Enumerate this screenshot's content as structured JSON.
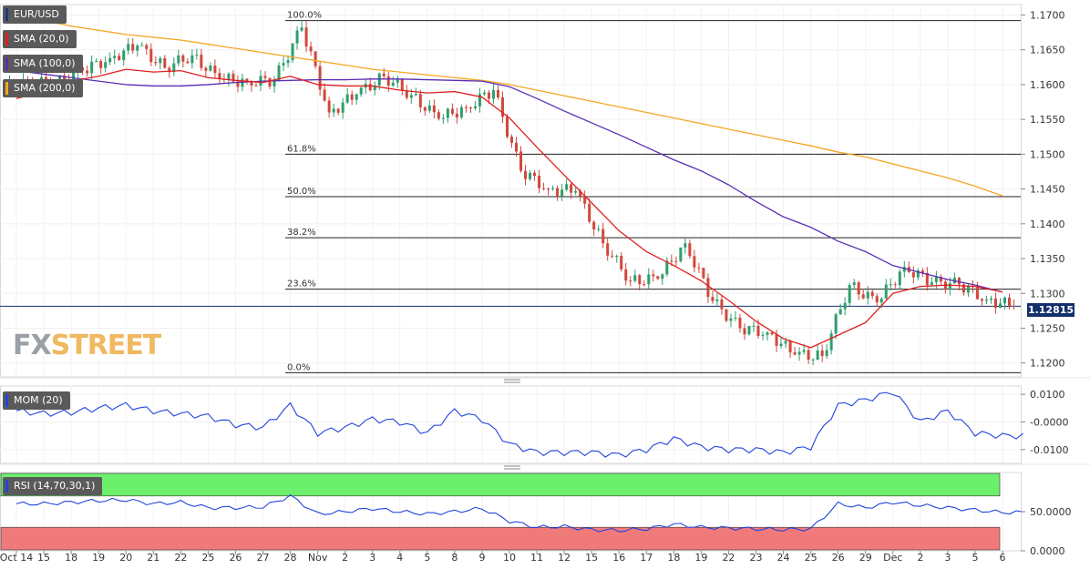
{
  "instrument": "EUR/USD",
  "indicators": {
    "sma20": {
      "label": "SMA (20,0)",
      "color": "#e02020"
    },
    "sma100": {
      "label": "SMA (100,0)",
      "color": "#5a2db4"
    },
    "sma200": {
      "label": "SMA (200,0)",
      "color": "#f5a623"
    },
    "mom": {
      "label": "MOM (20)",
      "color": "#2244dd"
    },
    "rsi": {
      "label": "RSI (14,70,30,1)",
      "color": "#2244dd"
    }
  },
  "last_price": "1.12815",
  "watermark": {
    "part1": "FX",
    "part2": "STREET"
  },
  "chart_data": [
    {
      "type": "candlestick",
      "title": "EUR/USD",
      "ylim": [
        1.118,
        1.1715
      ],
      "y_ticks": [
        "1.1700",
        "1.1650",
        "1.1600",
        "1.1550",
        "1.1500",
        "1.1450",
        "1.1400",
        "1.1350",
        "1.1300",
        "1.1250",
        "1.1200"
      ],
      "x_ticks": [
        "Oct 14",
        "15",
        "18",
        "19",
        "20",
        "21",
        "22",
        "25",
        "26",
        "27",
        "28",
        "Nov",
        "2",
        "3",
        "4",
        "5",
        "8",
        "9",
        "10",
        "11",
        "12",
        "15",
        "16",
        "17",
        "18",
        "19",
        "22",
        "23",
        "24",
        "25",
        "26",
        "29",
        "Dec",
        "2",
        "3",
        "5",
        "6"
      ],
      "fibonacci": [
        {
          "label": "100.0%",
          "value": 1.1692
        },
        {
          "label": "61.8%",
          "value": 1.15
        },
        {
          "label": "50.0%",
          "value": 1.1439
        },
        {
          "label": "38.2%",
          "value": 1.138
        },
        {
          "label": "23.6%",
          "value": 1.1306
        },
        {
          "label": "0.0%",
          "value": 1.1186
        }
      ],
      "current_price_line": 1.12815,
      "daily_closes": [
        1.1605,
        1.1601,
        1.162,
        1.1638,
        1.1656,
        1.1624,
        1.1642,
        1.1608,
        1.1604,
        1.1606,
        1.1682,
        1.156,
        1.1586,
        1.1612,
        1.1585,
        1.1551,
        1.1567,
        1.1592,
        1.1476,
        1.145,
        1.1447,
        1.1372,
        1.1318,
        1.1321,
        1.1372,
        1.1289,
        1.125,
        1.1244,
        1.1212,
        1.121,
        1.1312,
        1.1287,
        1.1338,
        1.1316,
        1.1313,
        1.1291,
        1.1282
      ],
      "sma20": [
        1.158,
        1.159,
        1.1605,
        1.1612,
        1.1622,
        1.1618,
        1.162,
        1.161,
        1.1606,
        1.1603,
        1.1612,
        1.16,
        1.1598,
        1.1598,
        1.1592,
        1.1588,
        1.159,
        1.1582,
        1.1552,
        1.151,
        1.147,
        1.143,
        1.139,
        1.136,
        1.134,
        1.1318,
        1.129,
        1.126,
        1.1235,
        1.1222,
        1.124,
        1.1258,
        1.13,
        1.131,
        1.1312,
        1.131,
        1.1302
      ],
      "sma100": [
        1.162,
        1.1615,
        1.161,
        1.1605,
        1.16,
        1.1598,
        1.1598,
        1.16,
        1.1603,
        1.1605,
        1.1606,
        1.1607,
        1.1607,
        1.1608,
        1.1608,
        1.1607,
        1.1606,
        1.1605,
        1.1597,
        1.158,
        1.1562,
        1.1545,
        1.1528,
        1.151,
        1.1492,
        1.1476,
        1.1456,
        1.1432,
        1.141,
        1.1395,
        1.1375,
        1.136,
        1.134,
        1.133,
        1.132,
        1.1312,
        1.1302
      ],
      "sma200": [
        1.17,
        1.1692,
        1.1684,
        1.1678,
        1.1672,
        1.1668,
        1.1664,
        1.1658,
        1.1652,
        1.1646,
        1.164,
        1.1634,
        1.1628,
        1.1622,
        1.1618,
        1.1614,
        1.161,
        1.1606,
        1.16,
        1.1592,
        1.1584,
        1.1576,
        1.1568,
        1.156,
        1.1552,
        1.1544,
        1.1536,
        1.1528,
        1.152,
        1.1512,
        1.1503,
        1.1496,
        1.1486,
        1.1476,
        1.1466,
        1.1454,
        1.144
      ]
    },
    {
      "type": "line",
      "title": "MOM (20)",
      "ylim": [
        -0.015,
        0.013
      ],
      "y_ticks": [
        "0.0100",
        "-0.0000",
        "-0.0100"
      ],
      "values": [
        0.004,
        0.003,
        0.0035,
        0.005,
        0.006,
        0.004,
        0.003,
        0.002,
        -0.001,
        -0.002,
        0.006,
        -0.004,
        -0.002,
        0.001,
        0.0,
        -0.004,
        0.004,
        0.001,
        -0.008,
        -0.011,
        -0.011,
        -0.011,
        -0.012,
        -0.01,
        -0.006,
        -0.009,
        -0.01,
        -0.01,
        -0.011,
        -0.009,
        0.006,
        0.008,
        0.011,
        0.0,
        0.004,
        -0.004,
        -0.005
      ]
    },
    {
      "type": "line",
      "title": "RSI (14,70,30,1)",
      "ylim": [
        0,
        100
      ],
      "y_ticks": [
        "50.0000",
        "0.0000"
      ],
      "overbought": 70,
      "oversold": 30,
      "values": [
        60,
        60,
        62,
        64,
        65,
        60,
        62,
        55,
        55,
        56,
        70,
        47,
        50,
        54,
        50,
        47,
        50,
        54,
        38,
        30,
        31,
        27,
        26,
        28,
        34,
        30,
        29,
        28,
        27,
        28,
        60,
        55,
        62,
        58,
        55,
        52,
        49
      ]
    }
  ]
}
